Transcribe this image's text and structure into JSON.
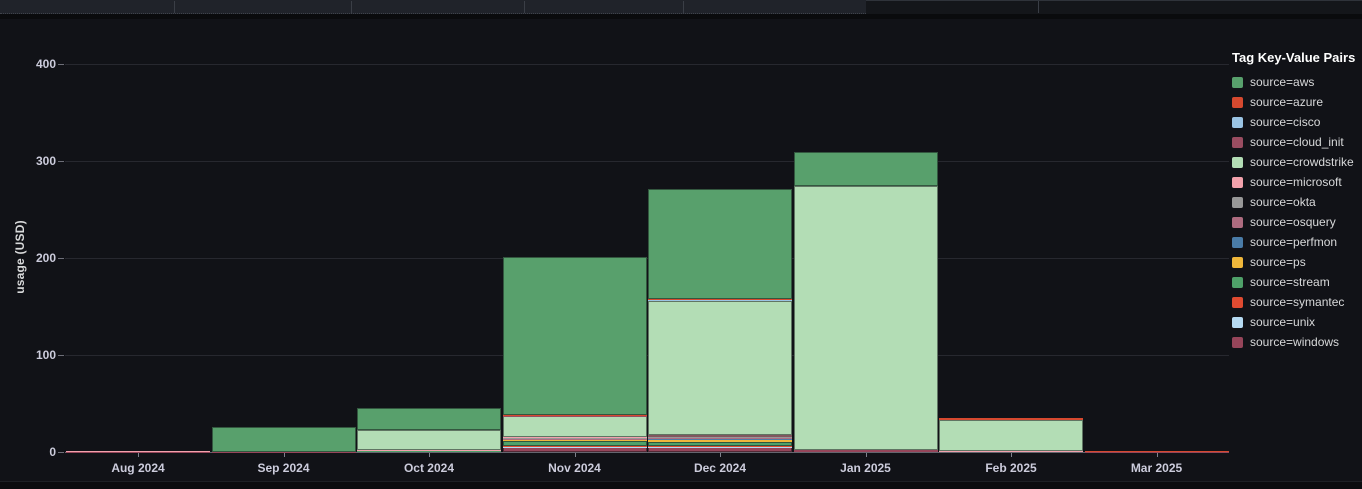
{
  "chart_data": {
    "type": "bar",
    "stacked": true,
    "title": "",
    "ylabel": "usage (USD)",
    "xlabel": "",
    "ylim": [
      0,
      400
    ],
    "yticks": [
      0,
      100,
      200,
      300,
      400
    ],
    "grid": true,
    "legend": {
      "title": "Tag Key-Value Pairs",
      "position": "right"
    },
    "categories": [
      "Aug 2024",
      "Sep 2024",
      "Oct 2024",
      "Nov 2024",
      "Dec 2024",
      "Jan 2025",
      "Feb 2025",
      "Mar 2025"
    ],
    "stack_order_bottom_to_top": [
      "source=windows",
      "source=unix",
      "source=symantec",
      "source=stream",
      "source=ps",
      "source=perfmon",
      "source=osquery",
      "source=okta",
      "source=microsoft",
      "source=crowdstrike",
      "source=cloud_init",
      "source=cisco",
      "source=azure",
      "source=aws"
    ],
    "series": [
      {
        "name": "source=aws",
        "color": "#58A06C",
        "values": [
          0,
          25,
          22,
          163,
          114,
          35,
          0,
          0
        ]
      },
      {
        "name": "source=azure",
        "color": "#D6492F",
        "values": [
          0,
          0,
          0,
          0.5,
          0.5,
          0,
          1.5,
          0.3
        ]
      },
      {
        "name": "source=cisco",
        "color": "#9BC4E4",
        "values": [
          0,
          0,
          0,
          0,
          0.5,
          0,
          0,
          0
        ]
      },
      {
        "name": "source=cloud_init",
        "color": "#9A4D61",
        "values": [
          0,
          0,
          0,
          0.5,
          0.5,
          0,
          0,
          0
        ]
      },
      {
        "name": "source=crowdstrike",
        "color": "#B3DDB5",
        "values": [
          0,
          0,
          21,
          22,
          138,
          272,
          32,
          0
        ]
      },
      {
        "name": "source=microsoft",
        "color": "#F2A2AC",
        "values": [
          0.3,
          0,
          0.3,
          1,
          3,
          0,
          0.3,
          0.3
        ]
      },
      {
        "name": "source=okta",
        "color": "#989898",
        "values": [
          0.4,
          0,
          0,
          0.5,
          1,
          0,
          0,
          0
        ]
      },
      {
        "name": "source=osquery",
        "color": "#AE6C80",
        "values": [
          0,
          0,
          0,
          0.5,
          1,
          0,
          0,
          0
        ]
      },
      {
        "name": "source=perfmon",
        "color": "#4A7CA8",
        "values": [
          0,
          0,
          0,
          0.5,
          1,
          0,
          0,
          0
        ]
      },
      {
        "name": "source=ps",
        "color": "#EFB73B",
        "values": [
          0,
          0,
          0.3,
          1.5,
          1.5,
          0,
          0.2,
          0
        ]
      },
      {
        "name": "source=stream",
        "color": "#4FA169",
        "values": [
          0.3,
          0,
          0.4,
          4.5,
          4,
          0,
          0.3,
          0
        ]
      },
      {
        "name": "source=symantec",
        "color": "#E04B31",
        "values": [
          0,
          0,
          0,
          1,
          1,
          0,
          0,
          0.4
        ]
      },
      {
        "name": "source=unix",
        "color": "#B6DAF2",
        "values": [
          0,
          0,
          0,
          0.5,
          0.5,
          0,
          0,
          0
        ]
      },
      {
        "name": "source=windows",
        "color": "#96455A",
        "values": [
          0.5,
          0.5,
          1,
          5,
          5,
          2.5,
          0.7,
          0.5
        ]
      }
    ]
  },
  "colors": {
    "panel_bg": "#111217",
    "axis_text": "#CCCCDC",
    "legend_text": "#D8D9DA",
    "grid": "rgba(204,204,220,0.12)",
    "axis_line": "rgba(204,204,220,0.45)"
  }
}
